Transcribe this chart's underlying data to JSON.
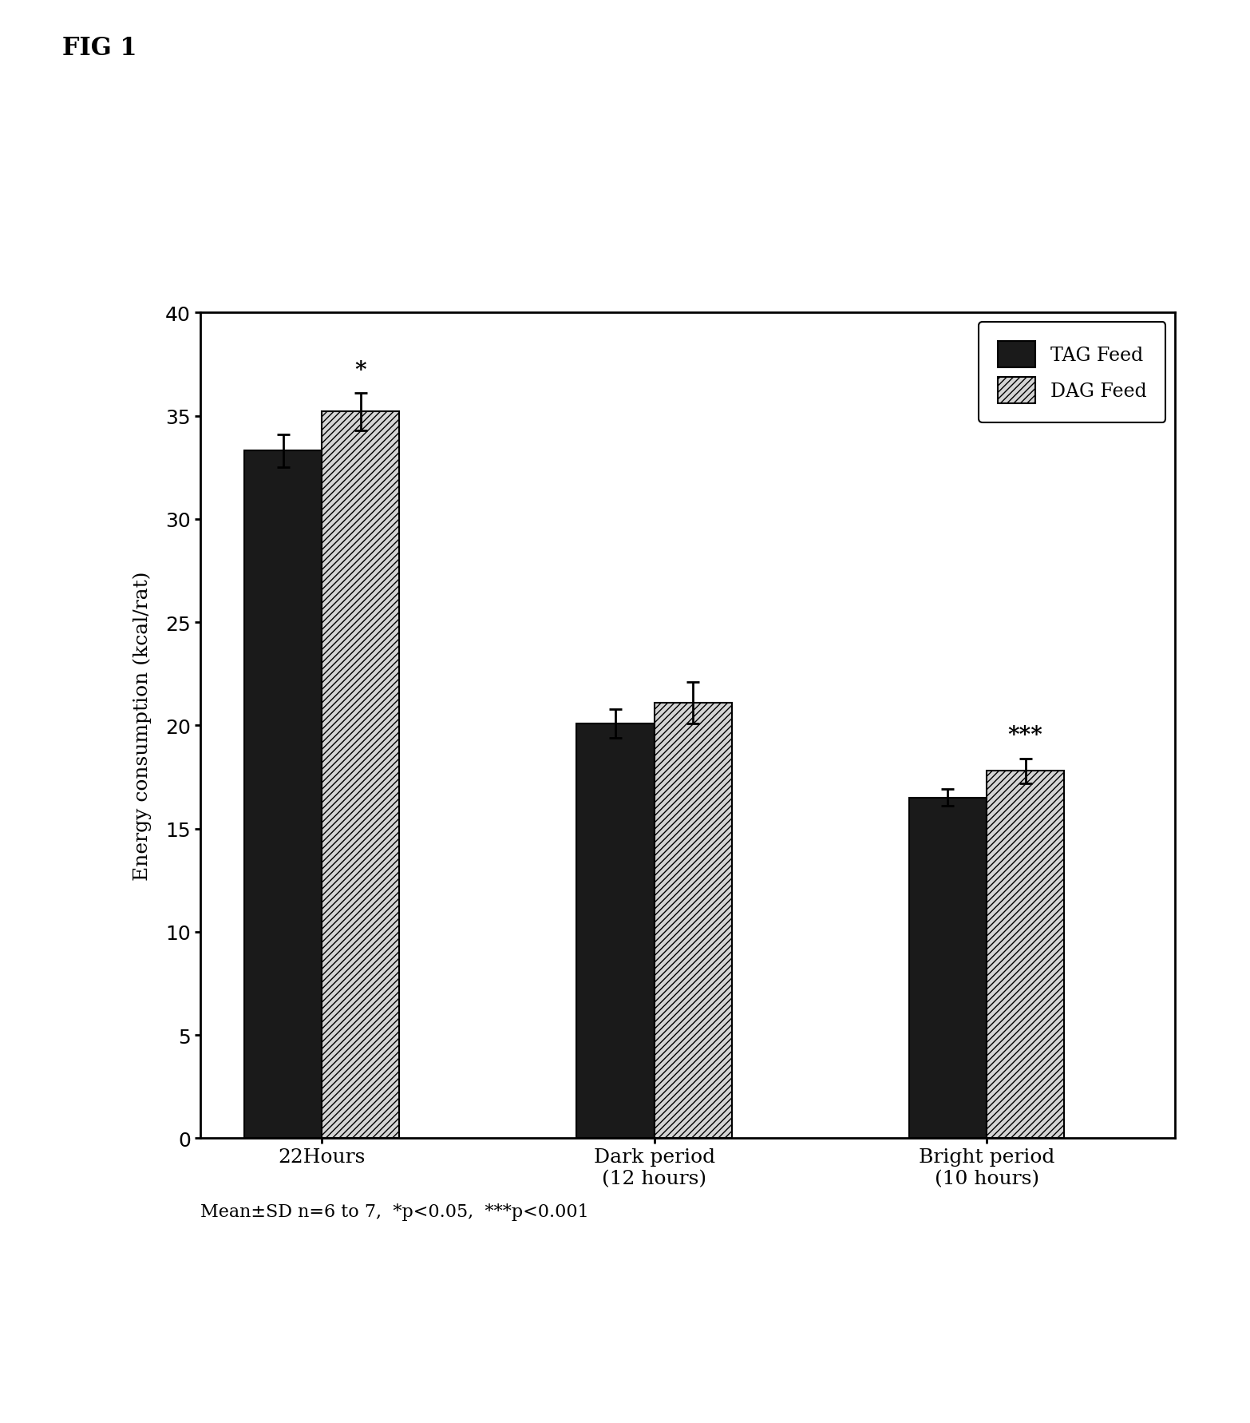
{
  "fig_label": "FIG 1",
  "groups": [
    "22Hours",
    "Dark period\n(12 hours)",
    "Bright period\n(10 hours)"
  ],
  "tag_values": [
    33.3,
    20.1,
    16.5
  ],
  "dag_values": [
    35.2,
    21.1,
    17.8
  ],
  "tag_errors": [
    0.8,
    0.7,
    0.4
  ],
  "dag_errors": [
    0.9,
    1.0,
    0.6
  ],
  "tag_color": "#1a1a1a",
  "dag_hatch": "////",
  "dag_facecolor": "#d4d4d4",
  "ylabel": "Energy consumption (kcal/rat)",
  "ylim": [
    0,
    40
  ],
  "yticks": [
    0,
    5,
    10,
    15,
    20,
    25,
    30,
    35,
    40
  ],
  "legend_tag": "TAG Feed",
  "legend_dag": "DAG Feed",
  "significance_dag": [
    "*",
    "",
    "***"
  ],
  "footnote": "Mean±SD n=6 to 7,  *p<0.05,  ***p<0.001",
  "bar_width": 0.35,
  "group_positions": [
    1.0,
    2.5,
    4.0
  ],
  "title_fontsize": 22,
  "axis_fontsize": 18,
  "tick_fontsize": 18,
  "legend_fontsize": 17,
  "footnote_fontsize": 16,
  "sig_fontsize": 20
}
